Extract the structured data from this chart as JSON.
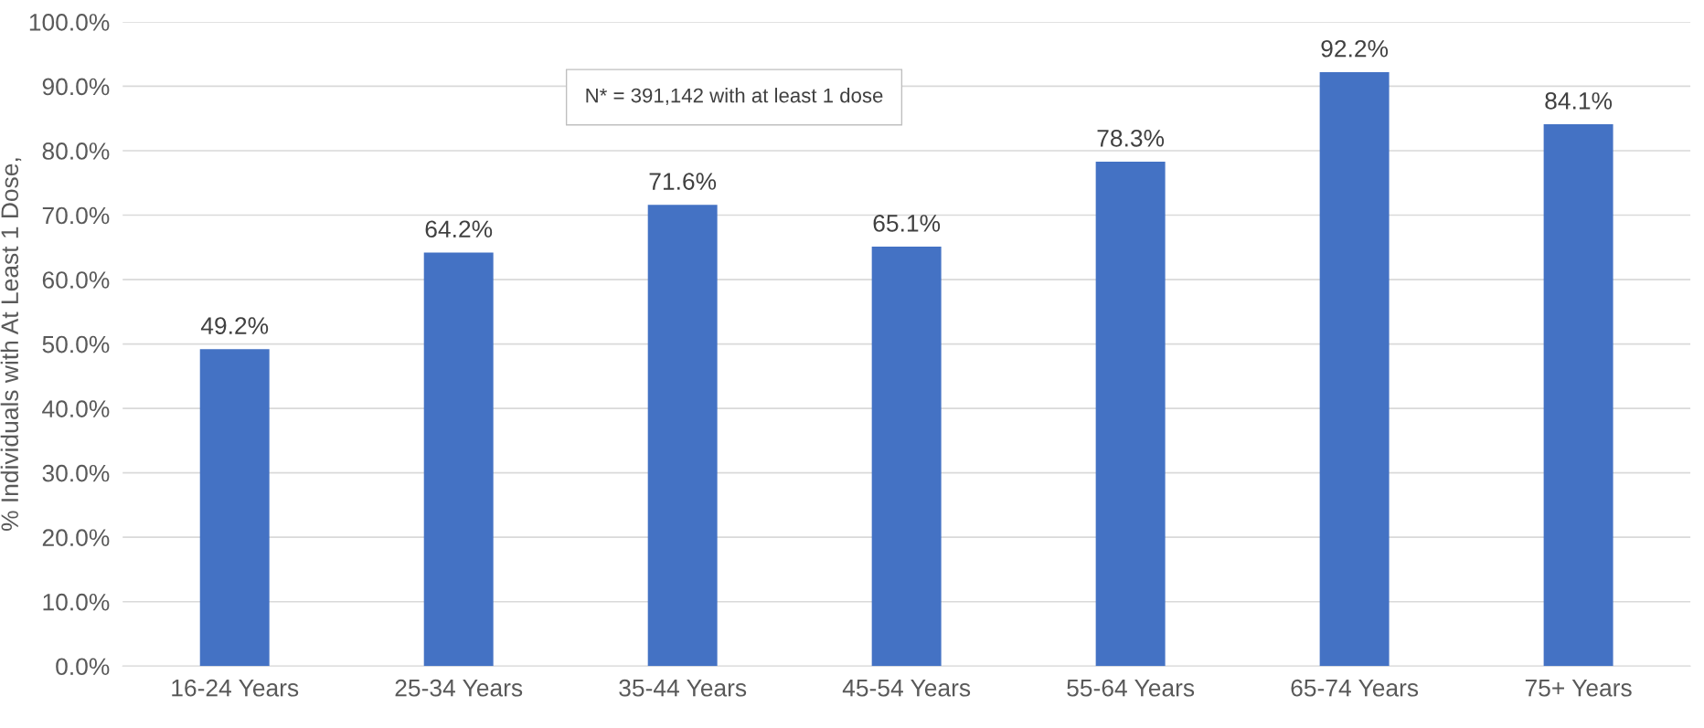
{
  "chart_data": {
    "type": "bar",
    "ylabel": "% Individuals with At Least 1 Dose,",
    "categories": [
      "16-24 Years",
      "25-34 Years",
      "35-44 Years",
      "45-54 Years",
      "55-64 Years",
      "65-74 Years",
      "75+ Years"
    ],
    "values": [
      49.2,
      64.2,
      71.6,
      65.1,
      78.3,
      92.2,
      84.1
    ],
    "value_labels": [
      "49.2%",
      "64.2%",
      "71.6%",
      "65.1%",
      "78.3%",
      "92.2%",
      "84.1%"
    ],
    "color": "#4472c4",
    "ylim": [
      0,
      100
    ],
    "yticks": [
      {
        "value": 0,
        "label": "0.0%"
      },
      {
        "value": 10,
        "label": "10.0%"
      },
      {
        "value": 20,
        "label": "20.0%"
      },
      {
        "value": 30,
        "label": "30.0%"
      },
      {
        "value": 40,
        "label": "40.0%"
      },
      {
        "value": 50,
        "label": "50.0%"
      },
      {
        "value": 60,
        "label": "60.0%"
      },
      {
        "value": 70,
        "label": "70.0%"
      },
      {
        "value": 80,
        "label": "80.0%"
      },
      {
        "value": 90,
        "label": "90.0%"
      },
      {
        "value": 100,
        "label": "100.0%"
      }
    ],
    "grid": "y",
    "annotations": [
      "N* = 391,142 with at least 1 dose"
    ]
  }
}
